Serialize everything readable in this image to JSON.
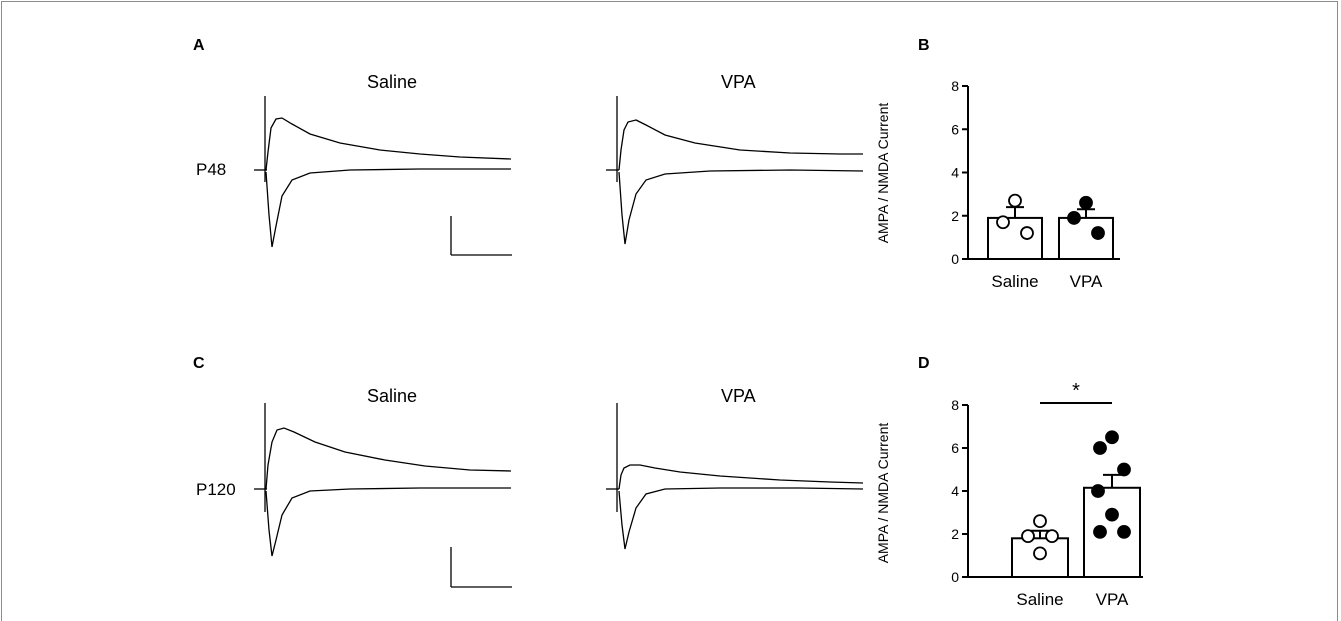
{
  "panels": {
    "A": "A",
    "B": "B",
    "C": "C",
    "D": "D"
  },
  "traces": {
    "row1": {
      "age": "P48",
      "left_label": "Saline",
      "right_label": "VPA"
    },
    "row2": {
      "age": "P120",
      "left_label": "Saline",
      "right_label": "VPA"
    }
  },
  "chart_data": [
    {
      "type": "bar",
      "panel": "B",
      "categories": [
        "Saline",
        "VPA"
      ],
      "values": [
        1.9,
        1.9
      ],
      "sem": [
        0.5,
        0.4
      ],
      "points": [
        [
          2.7,
          1.7,
          1.2
        ],
        [
          2.6,
          1.9,
          1.2
        ]
      ],
      "marker_fill": [
        "#ffffff",
        "#000000"
      ],
      "ylabel": "AMPA / NMDA Current",
      "ylim": [
        0,
        8
      ],
      "yticks": [
        "0",
        "2",
        "4",
        "6",
        "8"
      ],
      "significance": ""
    },
    {
      "type": "bar",
      "panel": "D",
      "categories": [
        "Saline",
        "VPA"
      ],
      "values": [
        1.8,
        4.15
      ],
      "sem": [
        0.35,
        0.6
      ],
      "points": [
        [
          2.6,
          1.9,
          1.9,
          1.1
        ],
        [
          6.5,
          6.0,
          5.0,
          4.0,
          2.9,
          2.1,
          2.1
        ]
      ],
      "marker_fill": [
        "#ffffff",
        "#000000"
      ],
      "ylabel": "AMPA / NMDA Current",
      "ylim": [
        0,
        8
      ],
      "yticks": [
        "0",
        "2",
        "4",
        "6",
        "8"
      ],
      "significance": "*"
    }
  ]
}
